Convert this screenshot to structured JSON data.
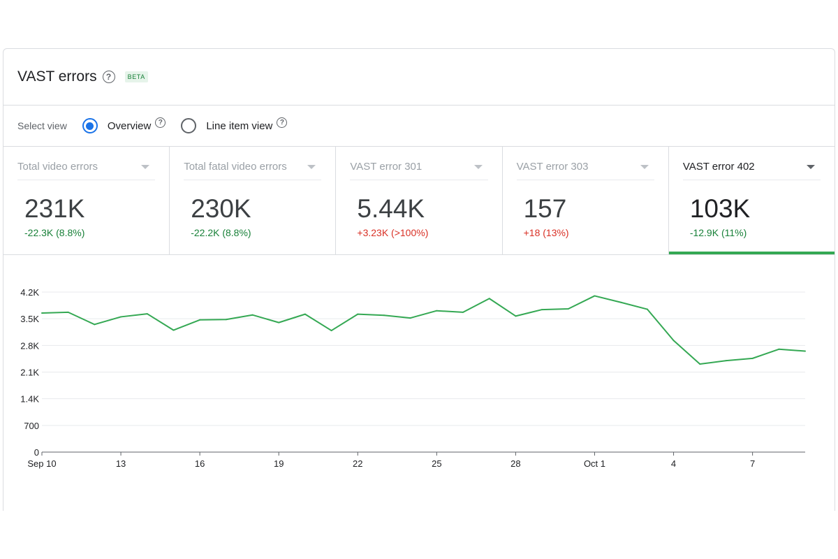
{
  "header": {
    "title": "VAST errors",
    "help_icon": "help-icon",
    "badge": "BETA"
  },
  "view": {
    "label": "Select view",
    "options": [
      {
        "label": "Overview",
        "selected": true
      },
      {
        "label": "Line item view",
        "selected": false
      }
    ]
  },
  "metrics": [
    {
      "label": "Total video errors",
      "value": "231K",
      "delta": "-22.3K (8.8%)",
      "trend": "down",
      "active": false
    },
    {
      "label": "Total fatal video errors",
      "value": "230K",
      "delta": "-22.2K (8.8%)",
      "trend": "down",
      "active": false
    },
    {
      "label": "VAST error 301",
      "value": "5.44K",
      "delta": "+3.23K (>100%)",
      "trend": "up",
      "active": false
    },
    {
      "label": "VAST error 303",
      "value": "157",
      "delta": "+18 (13%)",
      "trend": "up",
      "active": false
    },
    {
      "label": "VAST error 402",
      "value": "103K",
      "delta": "-12.9K (11%)",
      "trend": "down",
      "active": true
    }
  ],
  "colors": {
    "line": "#34a853",
    "accent": "#1a73e8",
    "positive": "#188038",
    "negative": "#d93025"
  },
  "chart_data": {
    "type": "line",
    "y_ticks": [
      {
        "value": 0,
        "label": "0"
      },
      {
        "value": 700,
        "label": "700"
      },
      {
        "value": 1400,
        "label": "1.4K"
      },
      {
        "value": 2100,
        "label": "2.1K"
      },
      {
        "value": 2800,
        "label": "2.8K"
      },
      {
        "value": 3500,
        "label": "3.5K"
      },
      {
        "value": 4200,
        "label": "4.2K"
      }
    ],
    "ylim": [
      0,
      4200
    ],
    "x_ticks": [
      {
        "x": 0,
        "label": "Sep 10"
      },
      {
        "x": 3,
        "label": "13"
      },
      {
        "x": 6,
        "label": "16"
      },
      {
        "x": 9,
        "label": "19"
      },
      {
        "x": 12,
        "label": "22"
      },
      {
        "x": 15,
        "label": "25"
      },
      {
        "x": 18,
        "label": "28"
      },
      {
        "x": 21,
        "label": "Oct 1"
      },
      {
        "x": 24,
        "label": "4"
      },
      {
        "x": 27,
        "label": "7"
      }
    ],
    "x_range": [
      0,
      29
    ],
    "grid": true,
    "series": [
      {
        "values": [
          3650,
          3670,
          3350,
          3550,
          3630,
          3200,
          3470,
          3480,
          3600,
          3400,
          3620,
          3190,
          3620,
          3590,
          3520,
          3710,
          3670,
          4030,
          3570,
          3740,
          3760,
          4100,
          3930,
          3750,
          2930,
          2310,
          2400,
          2460,
          2700,
          2650
        ]
      }
    ]
  }
}
